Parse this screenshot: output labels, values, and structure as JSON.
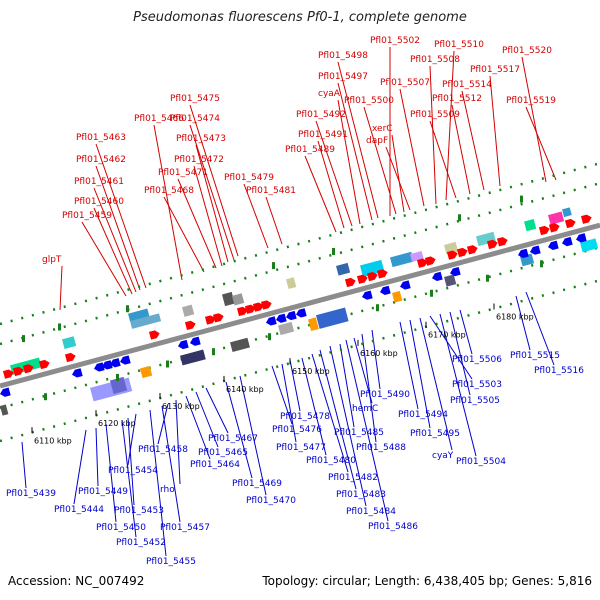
{
  "title": "Pseudomonas fluorescens Pf0-1, complete genome",
  "footer": {
    "accession": "Accession: NC_007492",
    "summary": "Topology: circular; Length: 6,438,405 bp; Genes: 5,816"
  },
  "colors": {
    "forward_label": "#d40000",
    "reverse_label": "#0000cc",
    "backbone": "#8c8c8c",
    "tick": "#1a7f1a"
  },
  "ticks": [
    "6110 kbp",
    "6120 kbp",
    "6130 kbp",
    "6140 kbp",
    "6150 kbp",
    "6160 kbp",
    "6170 kbp",
    "6180 kbp"
  ],
  "forward_labels": [
    "glpT",
    "Pfl01_5459",
    "Pfl01_5460",
    "Pfl01_5461",
    "Pfl01_5462",
    "Pfl01_5463",
    "Pfl01_5466",
    "Pfl01_5468",
    "Pfl01_5471",
    "Pfl01_5472",
    "Pfl01_5473",
    "Pfl01_5474",
    "Pfl01_5475",
    "Pfl01_5479",
    "Pfl01_5481",
    "Pfl01_5489",
    "Pfl01_5491",
    "Pfl01_5492",
    "cyaA",
    "Pfl01_5497",
    "Pfl01_5498",
    "Pfl01_5502",
    "Pfl01_5500",
    "xerC",
    "dapF",
    "Pfl01_5507",
    "Pfl01_5508",
    "Pfl01_5510",
    "Pfl01_5509",
    "Pfl01_5512",
    "Pfl01_5514",
    "Pfl01_5517",
    "Pfl01_5520",
    "Pfl01_5519"
  ],
  "reverse_labels": [
    "Pfl01_5439",
    "Pfl01_5444",
    "Pfl01_5449",
    "Pfl01_5450",
    "Pfl01_5452",
    "Pfl01_5453",
    "Pfl01_5454",
    "Pfl01_5455",
    "Pfl01_5457",
    "Pfl01_5458",
    "rho",
    "Pfl01_5464",
    "Pfl01_5465",
    "Pfl01_5467",
    "Pfl01_5469",
    "Pfl01_5470",
    "Pfl01_5476",
    "Pfl01_5477",
    "Pfl01_5478",
    "Pfl01_5480",
    "Pfl01_5482",
    "Pfl01_5483",
    "Pfl01_5484",
    "Pfl01_5485",
    "Pfl01_5486",
    "hemC",
    "Pfl01_5488",
    "Pfl01_5490",
    "Pfl01_5494",
    "Pfl01_5495",
    "cyaY",
    "Pfl01_5503",
    "Pfl01_5504",
    "Pfl01_5505",
    "Pfl01_5506",
    "Pfl01_5515",
    "Pfl01_5516"
  ]
}
